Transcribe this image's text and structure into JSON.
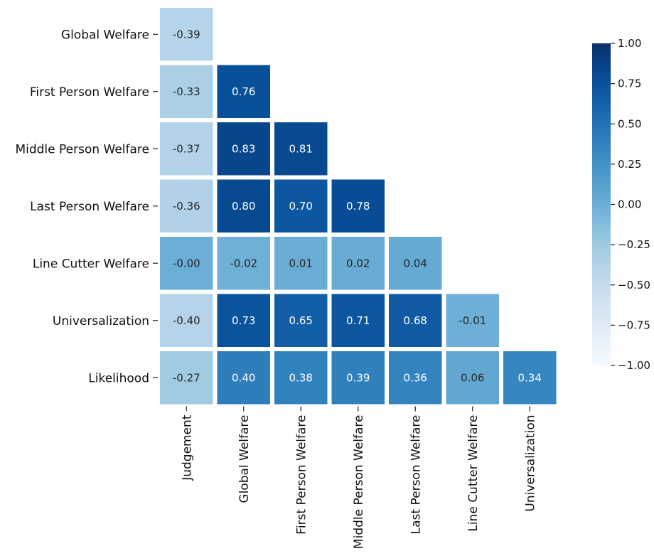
{
  "chart_data": {
    "type": "heatmap",
    "title": "",
    "colormap": "Blues",
    "vmin": -1.0,
    "vmax": 1.0,
    "row_labels": [
      "Global Welfare",
      "First Person Welfare",
      "Middle Person Welfare",
      "Last Person Welfare",
      "Line Cutter Welfare",
      "Universalization",
      "Likelihood"
    ],
    "col_labels": [
      "Judgement",
      "Global Welfare",
      "First Person Welfare",
      "Middle Person Welfare",
      "Last Person Welfare",
      "Line Cutter Welfare",
      "Universalization"
    ],
    "values": [
      [
        -0.39,
        null,
        null,
        null,
        null,
        null,
        null
      ],
      [
        -0.33,
        0.76,
        null,
        null,
        null,
        null,
        null
      ],
      [
        -0.37,
        0.83,
        0.81,
        null,
        null,
        null,
        null
      ],
      [
        -0.36,
        0.8,
        0.7,
        0.78,
        null,
        null,
        null
      ],
      [
        -0.0,
        -0.02,
        0.01,
        0.02,
        0.04,
        null,
        null
      ],
      [
        -0.4,
        0.73,
        0.65,
        0.71,
        0.68,
        -0.01,
        null
      ],
      [
        -0.27,
        0.4,
        0.38,
        0.39,
        0.36,
        0.06,
        0.34
      ]
    ],
    "value_labels": [
      [
        "-0.39"
      ],
      [
        "-0.33",
        "0.76"
      ],
      [
        "-0.37",
        "0.83",
        "0.81"
      ],
      [
        "-0.36",
        "0.80",
        "0.70",
        "0.78"
      ],
      [
        "-0.00",
        "-0.02",
        "0.01",
        "0.02",
        "0.04"
      ],
      [
        "-0.40",
        "0.73",
        "0.65",
        "0.71",
        "0.68",
        "-0.01"
      ],
      [
        "-0.27",
        "0.40",
        "0.38",
        "0.39",
        "0.36",
        "0.06",
        "0.34"
      ]
    ],
    "colorbar": {
      "ticks": [
        1.0,
        0.75,
        0.5,
        0.25,
        0.0,
        -0.25,
        -0.5,
        -0.75,
        -1.0
      ],
      "tick_labels": [
        "1.00",
        "0.75",
        "0.50",
        "0.25",
        "0.00",
        "−0.25",
        "−0.50",
        "−0.75",
        "−1.00"
      ]
    }
  }
}
